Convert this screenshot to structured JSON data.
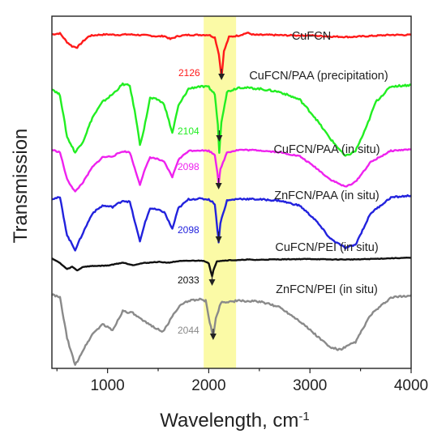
{
  "chart_data": {
    "type": "line",
    "title": "",
    "xlabel": "Wavelength, cm",
    "xlabel_superscript": "-1",
    "ylabel": "Transmission",
    "xlim": [
      450,
      4000
    ],
    "x_ticks": [
      1000,
      2000,
      3000,
      4000
    ],
    "x_tick_labels": [
      "1000",
      "2000",
      "3000",
      "4000"
    ],
    "y_ticks_shown": false,
    "grid": false,
    "highlight_band": {
      "x_range": [
        1950,
        2270
      ],
      "color": "#fbfaa6"
    },
    "series": [
      {
        "name": "CuFCN",
        "color": "#ff1a1a",
        "peak": {
          "label": "2126",
          "x": 2126
        },
        "points": [
          [
            450,
            0.93
          ],
          [
            530,
            0.95
          ],
          [
            600,
            0.78
          ],
          [
            650,
            0.7
          ],
          [
            700,
            0.68
          ],
          [
            760,
            0.8
          ],
          [
            820,
            0.9
          ],
          [
            900,
            0.92
          ],
          [
            1000,
            0.93
          ],
          [
            1100,
            0.92
          ],
          [
            1200,
            0.93
          ],
          [
            1300,
            0.92
          ],
          [
            1400,
            0.91
          ],
          [
            1500,
            0.89
          ],
          [
            1560,
            0.9
          ],
          [
            1620,
            0.84
          ],
          [
            1700,
            0.9
          ],
          [
            1800,
            0.92
          ],
          [
            1900,
            0.92
          ],
          [
            2000,
            0.92
          ],
          [
            2060,
            0.87
          ],
          [
            2100,
            0.55
          ],
          [
            2126,
            0.1
          ],
          [
            2150,
            0.6
          ],
          [
            2200,
            0.88
          ],
          [
            2300,
            0.91
          ],
          [
            2380,
            0.96
          ],
          [
            2450,
            0.92
          ],
          [
            2600,
            0.92
          ],
          [
            2800,
            0.91
          ],
          [
            3000,
            0.91
          ],
          [
            3200,
            0.89
          ],
          [
            3400,
            0.88
          ],
          [
            3600,
            0.9
          ],
          [
            3800,
            0.92
          ],
          [
            4000,
            0.92
          ]
        ]
      },
      {
        "name": "CuFCN/PAA (precipitation)",
        "color": "#22ee22",
        "peak": {
          "label": "2104",
          "x": 2104
        },
        "points": [
          [
            450,
            0.92
          ],
          [
            530,
            0.84
          ],
          [
            600,
            0.3
          ],
          [
            680,
            0.1
          ],
          [
            760,
            0.25
          ],
          [
            850,
            0.55
          ],
          [
            950,
            0.75
          ],
          [
            1050,
            0.85
          ],
          [
            1150,
            0.98
          ],
          [
            1220,
            0.96
          ],
          [
            1280,
            0.55
          ],
          [
            1320,
            0.2
          ],
          [
            1360,
            0.4
          ],
          [
            1420,
            0.8
          ],
          [
            1500,
            0.78
          ],
          [
            1560,
            0.72
          ],
          [
            1640,
            0.35
          ],
          [
            1700,
            0.7
          ],
          [
            1800,
            0.92
          ],
          [
            1900,
            0.95
          ],
          [
            2000,
            0.94
          ],
          [
            2060,
            0.85
          ],
          [
            2090,
            0.45
          ],
          [
            2104,
            0.1
          ],
          [
            2125,
            0.5
          ],
          [
            2180,
            0.88
          ],
          [
            2300,
            0.94
          ],
          [
            2500,
            0.92
          ],
          [
            2700,
            0.88
          ],
          [
            2900,
            0.78
          ],
          [
            3050,
            0.55
          ],
          [
            3200,
            0.28
          ],
          [
            3350,
            0.05
          ],
          [
            3450,
            0.12
          ],
          [
            3550,
            0.4
          ],
          [
            3650,
            0.75
          ],
          [
            3800,
            0.95
          ],
          [
            4000,
            0.97
          ]
        ]
      },
      {
        "name": "CuFCN/PAA (in situ)",
        "color": "#ee22ee",
        "peak": {
          "label": "2098",
          "x": 2098
        },
        "points": [
          [
            450,
            0.95
          ],
          [
            530,
            0.9
          ],
          [
            600,
            0.35
          ],
          [
            680,
            0.1
          ],
          [
            760,
            0.3
          ],
          [
            850,
            0.6
          ],
          [
            950,
            0.8
          ],
          [
            1050,
            0.82
          ],
          [
            1150,
            0.92
          ],
          [
            1220,
            0.9
          ],
          [
            1280,
            0.5
          ],
          [
            1320,
            0.25
          ],
          [
            1360,
            0.5
          ],
          [
            1420,
            0.8
          ],
          [
            1500,
            0.76
          ],
          [
            1560,
            0.7
          ],
          [
            1640,
            0.4
          ],
          [
            1700,
            0.75
          ],
          [
            1800,
            0.93
          ],
          [
            1900,
            0.94
          ],
          [
            2000,
            0.93
          ],
          [
            2060,
            0.85
          ],
          [
            2085,
            0.5
          ],
          [
            2098,
            0.25
          ],
          [
            2115,
            0.55
          ],
          [
            2180,
            0.9
          ],
          [
            2300,
            0.95
          ],
          [
            2500,
            0.94
          ],
          [
            2700,
            0.9
          ],
          [
            2900,
            0.82
          ],
          [
            3050,
            0.6
          ],
          [
            3200,
            0.35
          ],
          [
            3350,
            0.2
          ],
          [
            3450,
            0.3
          ],
          [
            3600,
            0.7
          ],
          [
            3800,
            0.93
          ],
          [
            4000,
            0.96
          ]
        ]
      },
      {
        "name": "ZnFCN/PAA (in situ)",
        "color": "#2222dd",
        "peak": {
          "label": "2098",
          "x": 2098
        },
        "points": [
          [
            450,
            0.93
          ],
          [
            530,
            0.95
          ],
          [
            600,
            0.35
          ],
          [
            680,
            0.12
          ],
          [
            760,
            0.4
          ],
          [
            850,
            0.7
          ],
          [
            950,
            0.82
          ],
          [
            1050,
            0.8
          ],
          [
            1150,
            0.9
          ],
          [
            1220,
            0.88
          ],
          [
            1280,
            0.5
          ],
          [
            1320,
            0.25
          ],
          [
            1360,
            0.5
          ],
          [
            1420,
            0.78
          ],
          [
            1500,
            0.75
          ],
          [
            1560,
            0.72
          ],
          [
            1640,
            0.45
          ],
          [
            1700,
            0.78
          ],
          [
            1800,
            0.92
          ],
          [
            1900,
            0.93
          ],
          [
            2000,
            0.92
          ],
          [
            2060,
            0.85
          ],
          [
            2085,
            0.45
          ],
          [
            2098,
            0.25
          ],
          [
            2115,
            0.55
          ],
          [
            2180,
            0.9
          ],
          [
            2300,
            0.93
          ],
          [
            2500,
            0.92
          ],
          [
            2700,
            0.9
          ],
          [
            2900,
            0.82
          ],
          [
            3050,
            0.6
          ],
          [
            3200,
            0.3
          ],
          [
            3350,
            0.15
          ],
          [
            3450,
            0.2
          ],
          [
            3600,
            0.7
          ],
          [
            3800,
            0.95
          ],
          [
            4000,
            0.98
          ]
        ]
      },
      {
        "name": "CuFCN/PEI (in situ)",
        "color": "#111111",
        "peak": {
          "label": "2033",
          "x": 2033
        },
        "points": [
          [
            450,
            0.9
          ],
          [
            530,
            0.7
          ],
          [
            600,
            0.45
          ],
          [
            650,
            0.55
          ],
          [
            700,
            0.4
          ],
          [
            760,
            0.55
          ],
          [
            850,
            0.58
          ],
          [
            1000,
            0.6
          ],
          [
            1150,
            0.72
          ],
          [
            1250,
            0.62
          ],
          [
            1350,
            0.7
          ],
          [
            1500,
            0.75
          ],
          [
            1600,
            0.72
          ],
          [
            1700,
            0.78
          ],
          [
            1850,
            0.8
          ],
          [
            1950,
            0.8
          ],
          [
            2000,
            0.7
          ],
          [
            2020,
            0.35
          ],
          [
            2033,
            0.15
          ],
          [
            2045,
            0.4
          ],
          [
            2080,
            0.78
          ],
          [
            2200,
            0.82
          ],
          [
            2300,
            0.82
          ],
          [
            2380,
            0.85
          ],
          [
            2450,
            0.83
          ],
          [
            2600,
            0.85
          ],
          [
            2800,
            0.86
          ],
          [
            3000,
            0.87
          ],
          [
            3200,
            0.85
          ],
          [
            3400,
            0.85
          ],
          [
            3600,
            0.87
          ],
          [
            3800,
            0.9
          ],
          [
            4000,
            0.92
          ]
        ]
      },
      {
        "name": "ZnFCN/PEI (in situ)",
        "color": "#8a8a8a",
        "peak": {
          "label": "2044",
          "x": 2044
        },
        "points": [
          [
            450,
            0.96
          ],
          [
            530,
            0.92
          ],
          [
            600,
            0.4
          ],
          [
            680,
            0.05
          ],
          [
            760,
            0.25
          ],
          [
            850,
            0.45
          ],
          [
            950,
            0.58
          ],
          [
            1050,
            0.5
          ],
          [
            1150,
            0.75
          ],
          [
            1250,
            0.72
          ],
          [
            1350,
            0.62
          ],
          [
            1450,
            0.55
          ],
          [
            1550,
            0.48
          ],
          [
            1640,
            0.68
          ],
          [
            1700,
            0.8
          ],
          [
            1800,
            0.88
          ],
          [
            1900,
            0.9
          ],
          [
            1970,
            0.88
          ],
          [
            2010,
            0.6
          ],
          [
            2044,
            0.42
          ],
          [
            2070,
            0.65
          ],
          [
            2120,
            0.86
          ],
          [
            2300,
            0.88
          ],
          [
            2500,
            0.87
          ],
          [
            2700,
            0.8
          ],
          [
            2900,
            0.62
          ],
          [
            3050,
            0.45
          ],
          [
            3200,
            0.28
          ],
          [
            3300,
            0.25
          ],
          [
            3450,
            0.35
          ],
          [
            3600,
            0.7
          ],
          [
            3800,
            0.92
          ],
          [
            4000,
            0.95
          ]
        ]
      }
    ]
  }
}
